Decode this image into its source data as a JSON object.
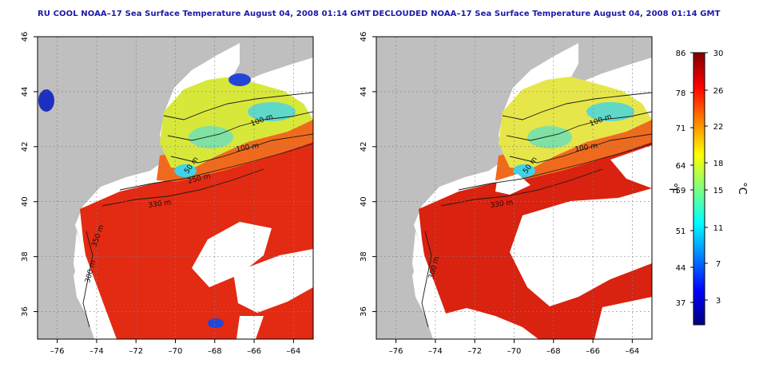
{
  "panels": [
    {
      "title": "RU COOL NOAA–17 Sea Surface Temperature August 04, 2008 01:14 GMT",
      "contour_labels": [
        "100 m",
        "100 m",
        "50 m",
        "250 m",
        "330 m",
        "350 m",
        "300 m"
      ]
    },
    {
      "title": "DECLOUDED NOAA–17 Sea Surface Temperature August 04, 2008 01:14 GMT",
      "contour_labels": [
        "100 m",
        "100 m",
        "50 m",
        "330 m",
        "300 m"
      ]
    }
  ],
  "map_axes": {
    "x_ticks": [
      "–76",
      "–74",
      "–72",
      "–70",
      "–68",
      "–66",
      "–64"
    ],
    "y_ticks": [
      "46",
      "44",
      "42",
      "40",
      "38",
      "36"
    ]
  },
  "colorbar": {
    "fahrenheit_label": "°F",
    "celsius_label": "°C",
    "fahrenheit_ticks": [
      "86",
      "78",
      "71",
      "64",
      "59",
      "51",
      "44",
      "37"
    ],
    "celsius_ticks": [
      "30",
      "26",
      "22",
      "18",
      "15",
      "11",
      "7",
      "3"
    ],
    "colors": [
      "#00007f",
      "#0000ff",
      "#0080ff",
      "#00ffff",
      "#80ff80",
      "#ffff00",
      "#ff8000",
      "#ff0000",
      "#7f0000"
    ]
  },
  "colors": {
    "land": "#bfbfbf",
    "title": "#1a1aa8",
    "contour": "#1a1a1a"
  }
}
